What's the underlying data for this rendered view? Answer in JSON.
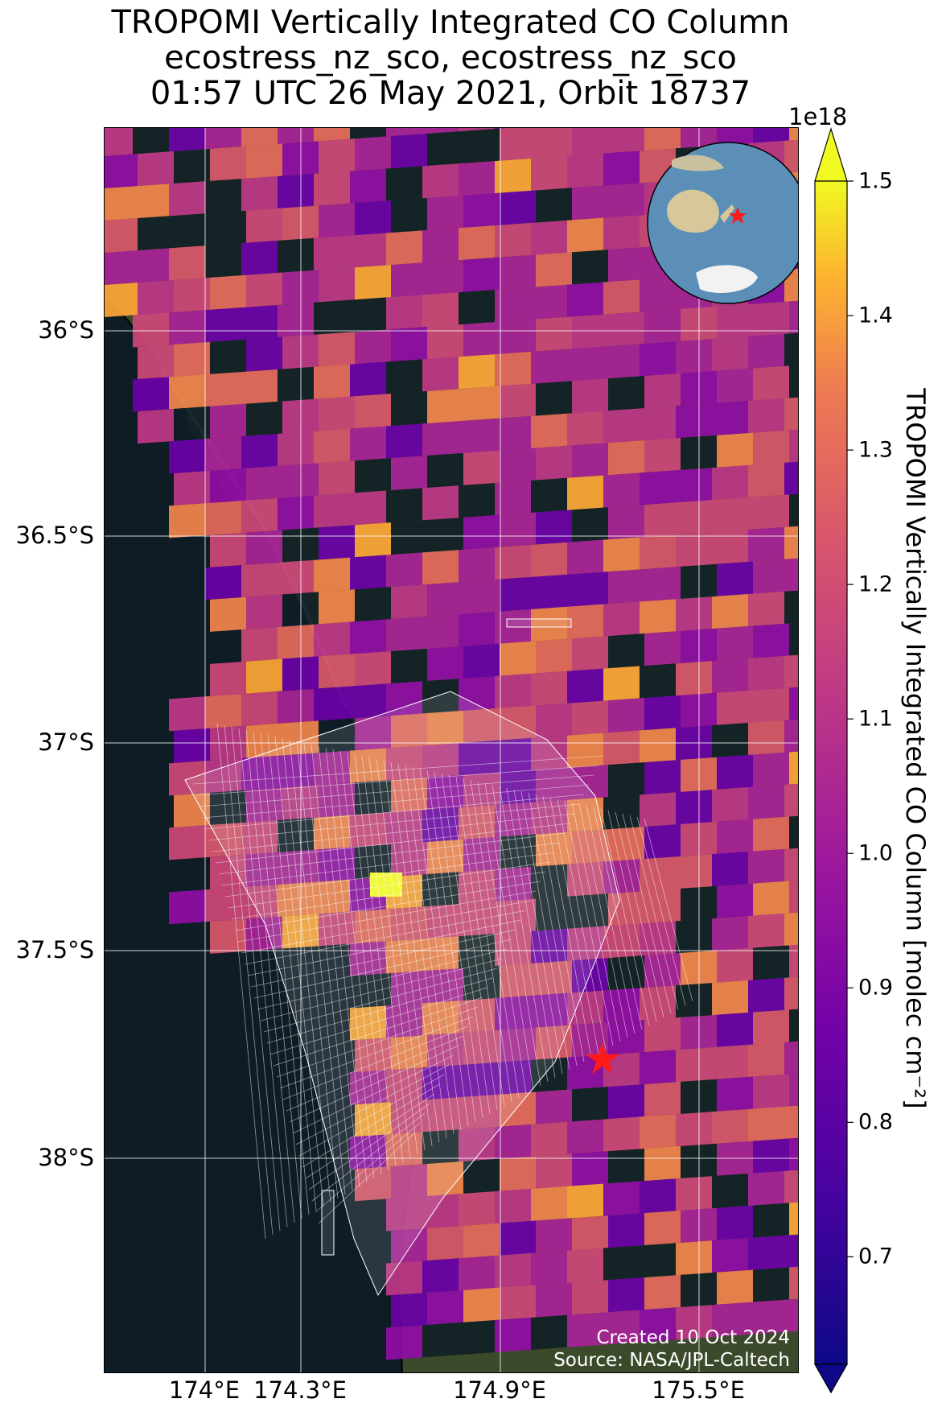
{
  "header": {
    "title_line1": "TROPOMI Vertically Integrated CO Column",
    "title_line2": "ecostress_nz_sco, ecostress_nz_sco",
    "title_line3": "01:57 UTC 26 May 2021, Orbit 18737"
  },
  "map": {
    "latitude_labels": [
      "36°S",
      "36.5°S",
      "37°S",
      "37.5°S",
      "38°S"
    ],
    "longitude_labels": [
      "174°E",
      "174.3°E",
      "174.9°E",
      "175.5°E"
    ],
    "marker": "red-star",
    "inset": "globe-locator",
    "grid": true
  },
  "colorbar": {
    "exponent": "1e18",
    "ticks": [
      "0.7",
      "0.8",
      "0.9",
      "1.0",
      "1.1",
      "1.2",
      "1.3",
      "1.4",
      "1.5"
    ],
    "label": "TROPOMI Vertically Integrated CO Column [molec cm⁻²]",
    "colormap": "plasma",
    "min": 0.62,
    "max": 1.5
  },
  "credits": {
    "created": "Created 10 Oct 2024",
    "source": "Source: NASA/JPL-Caltech"
  },
  "colors": {
    "ocean": "#0e1c26",
    "land": "#3a4a2a",
    "marker": "#ff1a1a",
    "footprint_outline": "#ffffff"
  }
}
